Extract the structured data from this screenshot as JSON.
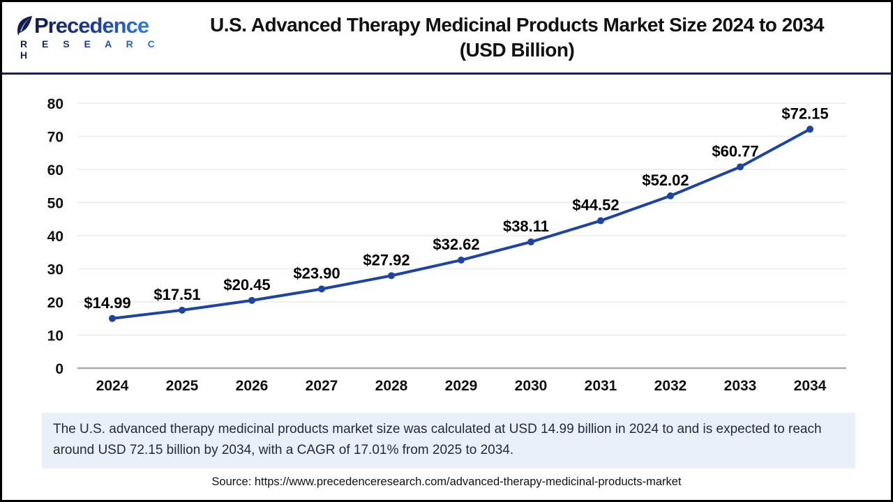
{
  "header": {
    "logo": {
      "name": "Precedence",
      "subtitle": "R E S E A R C H"
    },
    "title_line1": "U.S. Advanced Therapy Medicinal Products Market Size 2024 to 2034",
    "title_line2": "(USD Billion)"
  },
  "chart_data": {
    "type": "line",
    "title": "U.S. Advanced Therapy Medicinal Products Market Size 2024 to 2034 (USD Billion)",
    "categories": [
      "2024",
      "2025",
      "2026",
      "2027",
      "2028",
      "2029",
      "2030",
      "2031",
      "2032",
      "2033",
      "2034"
    ],
    "values": [
      14.99,
      17.51,
      20.45,
      23.9,
      27.92,
      32.62,
      38.11,
      44.52,
      52.02,
      60.77,
      72.15
    ],
    "data_labels": [
      "$14.99",
      "$17.51",
      "$20.45",
      "$23.90",
      "$27.92",
      "$32.62",
      "$38.11",
      "$44.52",
      "$52.02",
      "$60.77",
      "$72.15"
    ],
    "label_prefix": "$",
    "xlabel": "",
    "ylabel": "",
    "ylim": [
      0,
      80
    ],
    "yticks": [
      0,
      10,
      20,
      30,
      40,
      50,
      60,
      70,
      80
    ],
    "grid": true,
    "legend_position": "none",
    "line_color": "#1c44a0",
    "marker": "circle"
  },
  "colors": {
    "line": "#1c44a0",
    "gridline": "#eaeaea",
    "axis_line": "#ababab",
    "tick_text": "#111111",
    "data_label_text": "#000000",
    "header_rule": "#1b1f5e",
    "frame_border": "#000000",
    "note_background": "#e9f0fa",
    "note_text": "#212b3d",
    "brand_navy": "#151b50",
    "brand_blue": "#2e7de2"
  },
  "footer": {
    "description": "The U.S. advanced therapy medicinal products market size was calculated at USD 14.99 billion in 2024 to and is expected to reach around USD 72.15 billion by 2034, with a CAGR of 17.01% from 2025 to 2034.",
    "source": "Source: https://www.precedenceresearch.com/advanced-therapy-medicinal-products-market"
  }
}
